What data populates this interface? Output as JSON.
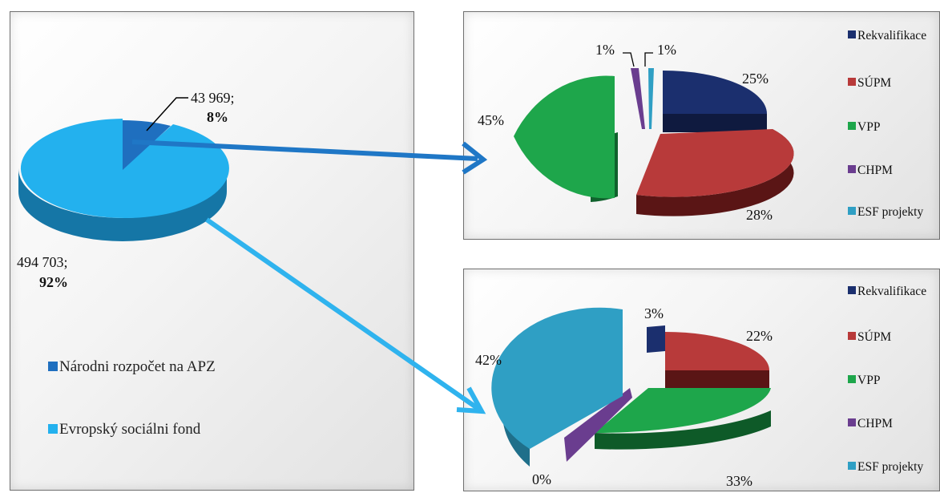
{
  "chart_data": [
    {
      "type": "pie",
      "title": "",
      "slices": [
        {
          "name": "Národni rozpočet na APZ",
          "value": 43969,
          "value_label": "43 969;",
          "percent_label": "8%",
          "color": "#1f70c1"
        },
        {
          "name": "Evropský sociálni fond",
          "value": 494703,
          "value_label": "494 703;",
          "percent_label": "92%",
          "color": "#2fb6ee"
        }
      ],
      "legend": [
        "Národni rozpočet na APZ",
        "Evropský sociálni fond"
      ],
      "legend_position": "bottom"
    },
    {
      "type": "pie",
      "title": "",
      "slices": [
        {
          "name": "Rekvalifikace",
          "value": 25,
          "label": "25%",
          "color": "#1b2f6e"
        },
        {
          "name": "SÚPM",
          "value": 28,
          "label": "28%",
          "color": "#b83a3a"
        },
        {
          "name": "VPP",
          "value": 45,
          "label": "45%",
          "color": "#1ea64b"
        },
        {
          "name": "CHPM",
          "value": 1,
          "label": "1%",
          "color": "#6a3d8f"
        },
        {
          "name": "ESF projekty",
          "value": 1,
          "label": "1%",
          "color": "#2f9fc4"
        }
      ],
      "legend_position": "right"
    },
    {
      "type": "pie",
      "title": "",
      "slices": [
        {
          "name": "Rekvalifikace",
          "value": 3,
          "label": "3%",
          "color": "#1b2f6e"
        },
        {
          "name": "SÚPM",
          "value": 22,
          "label": "22%",
          "color": "#b83a3a"
        },
        {
          "name": "VPP",
          "value": 33,
          "label": "33%",
          "color": "#1ea64b"
        },
        {
          "name": "CHPM",
          "value": 0,
          "label": "0%",
          "color": "#6a3d8f"
        },
        {
          "name": "ESF projekty",
          "value": 42,
          "label": "42%",
          "color": "#2f9fc4"
        }
      ],
      "legend_position": "right"
    }
  ]
}
